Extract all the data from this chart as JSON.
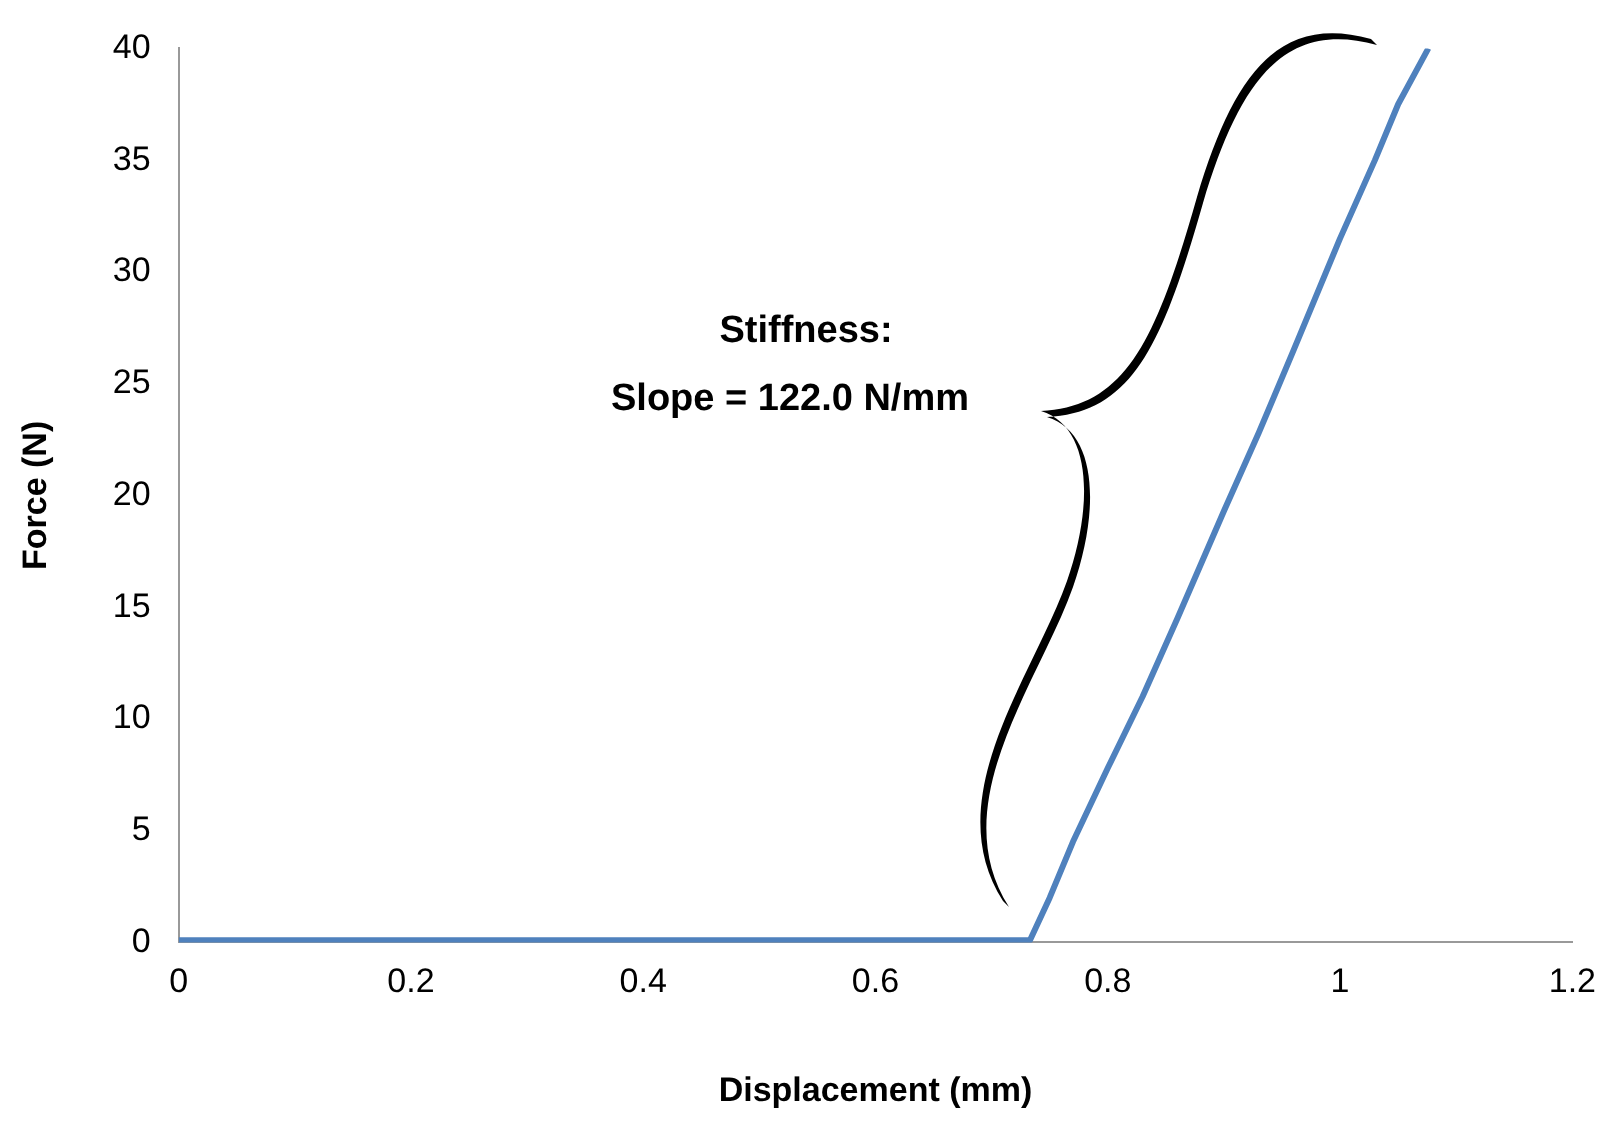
{
  "chart_data": {
    "type": "line",
    "xlabel": "Displacement (mm)",
    "ylabel": "Force (N)",
    "annotations": [
      "Stiffness:",
      "Slope = 122.0 N/mm"
    ],
    "series": [
      {
        "color": "#4f81bd",
        "x": [
          0,
          0.1,
          0.2,
          0.3,
          0.4,
          0.5,
          0.6,
          0.7,
          0.733,
          0.75,
          0.77,
          0.8,
          0.83,
          0.86,
          0.9,
          0.93,
          0.96,
          1.0,
          1.03,
          1.05,
          1.076
        ],
        "values": [
          0.1,
          0.1,
          0.1,
          0.1,
          0.1,
          0.1,
          0.1,
          0.1,
          0.1,
          2,
          4.5,
          7.8,
          11,
          14.5,
          19.3,
          22.8,
          26.5,
          31.5,
          35,
          37.5,
          40
        ]
      }
    ],
    "xlim": [
      0,
      1.2
    ],
    "xticks": [
      0,
      0.2,
      0.4,
      0.6,
      0.8,
      1,
      1.2
    ],
    "ylim": [
      0,
      40
    ],
    "yticks": [
      0,
      5,
      10,
      15,
      20,
      25,
      30,
      35,
      40
    ],
    "grid": false,
    "legend": false,
    "marker": "none",
    "line_style": "solid"
  }
}
